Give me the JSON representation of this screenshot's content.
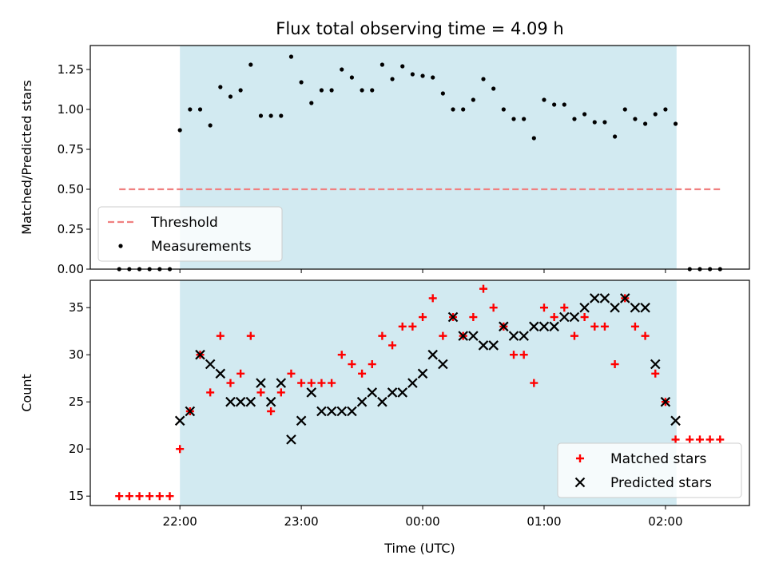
{
  "chart_data": [
    {
      "type": "scatter",
      "title": "Flux total observing time = 4.09 h",
      "ylabel": "Matched/Predicted stars",
      "xlabel": "",
      "x_ticks": [
        "22:00",
        "23:00",
        "00:00",
        "01:00",
        "02:00"
      ],
      "x_tick_values": [
        0,
        60,
        120,
        180,
        240
      ],
      "y_ticks": [
        "0.00",
        "0.25",
        "0.50",
        "0.75",
        "1.00",
        "1.25"
      ],
      "y_tick_values": [
        0,
        0.25,
        0.5,
        0.75,
        1.0,
        1.25
      ],
      "xlim": [
        -44.3,
        281.5
      ],
      "ylim": [
        0,
        1.4
      ],
      "shaded_region": [
        0,
        245.5
      ],
      "shade_color": "#add8e6",
      "legend_position": "lower-left",
      "series": [
        {
          "name": "Threshold",
          "style": "dashed-line",
          "color": "#f08080",
          "x": [
            -30,
            267
          ],
          "y": [
            0.5,
            0.5
          ]
        },
        {
          "name": "Measurements",
          "style": "dots",
          "color": "#000000",
          "x": [
            -30,
            -25,
            -20,
            -15,
            -10,
            -5,
            0,
            5,
            10,
            15,
            20,
            25,
            30,
            35,
            40,
            45,
            50,
            55,
            60,
            65,
            70,
            75,
            80,
            85,
            90,
            95,
            100,
            105,
            110,
            115,
            120,
            125,
            130,
            135,
            140,
            145,
            150,
            155,
            160,
            165,
            170,
            175,
            180,
            185,
            190,
            195,
            200,
            205,
            210,
            215,
            220,
            225,
            230,
            235,
            240,
            245,
            252,
            257,
            262,
            267
          ],
          "y": [
            0,
            0,
            0,
            0,
            0,
            0,
            0.87,
            1.0,
            1.0,
            0.9,
            1.14,
            1.08,
            1.12,
            1.28,
            0.96,
            0.96,
            0.96,
            1.33,
            1.17,
            1.04,
            1.12,
            1.12,
            1.25,
            1.2,
            1.12,
            1.12,
            1.28,
            1.19,
            1.27,
            1.22,
            1.21,
            1.2,
            1.1,
            1.0,
            1.0,
            1.06,
            1.19,
            1.13,
            1.0,
            0.94,
            0.94,
            0.82,
            1.06,
            1.03,
            1.03,
            0.94,
            0.97,
            0.92,
            0.92,
            0.83,
            1.0,
            0.94,
            0.91,
            0.97,
            1.0,
            0.91,
            0,
            0,
            0,
            0
          ]
        }
      ]
    },
    {
      "type": "scatter",
      "title": "",
      "ylabel": "Count",
      "xlabel": "Time (UTC)",
      "x_ticks": [
        "22:00",
        "23:00",
        "00:00",
        "01:00",
        "02:00"
      ],
      "x_tick_values": [
        0,
        60,
        120,
        180,
        240
      ],
      "y_ticks": [
        "15",
        "20",
        "25",
        "30",
        "35"
      ],
      "y_tick_values": [
        15,
        20,
        25,
        30,
        35
      ],
      "xlim": [
        -44.3,
        281.5
      ],
      "ylim": [
        14,
        37.9
      ],
      "shaded_region": [
        0,
        245.5
      ],
      "shade_color": "#add8e6",
      "legend_position": "lower-right",
      "series": [
        {
          "name": "Matched stars",
          "style": "plus",
          "color": "#ff0000",
          "x": [
            -30,
            -25,
            -20,
            -15,
            -10,
            -5,
            0,
            5,
            10,
            15,
            20,
            25,
            30,
            35,
            40,
            45,
            50,
            55,
            60,
            65,
            70,
            75,
            80,
            85,
            90,
            95,
            100,
            105,
            110,
            115,
            120,
            125,
            130,
            135,
            140,
            145,
            150,
            155,
            160,
            165,
            170,
            175,
            180,
            185,
            190,
            195,
            200,
            205,
            210,
            215,
            220,
            225,
            230,
            235,
            240,
            245,
            252,
            257,
            262,
            267
          ],
          "y": [
            15,
            15,
            15,
            15,
            15,
            15,
            20,
            24,
            30,
            26,
            32,
            27,
            28,
            32,
            26,
            24,
            26,
            28,
            27,
            27,
            27,
            27,
            30,
            29,
            28,
            29,
            32,
            31,
            33,
            33,
            34,
            36,
            32,
            34,
            32,
            34,
            37,
            35,
            33,
            30,
            30,
            27,
            35,
            34,
            35,
            32,
            34,
            33,
            33,
            29,
            36,
            33,
            32,
            28,
            25,
            21,
            21,
            21,
            21,
            21
          ]
        },
        {
          "name": "Predicted stars",
          "style": "x",
          "color": "#000000",
          "x": [
            0,
            5,
            10,
            15,
            20,
            25,
            30,
            35,
            40,
            45,
            50,
            55,
            60,
            65,
            70,
            75,
            80,
            85,
            90,
            95,
            100,
            105,
            110,
            115,
            120,
            125,
            130,
            135,
            140,
            145,
            150,
            155,
            160,
            165,
            170,
            175,
            180,
            185,
            190,
            195,
            200,
            205,
            210,
            215,
            220,
            225,
            230,
            235,
            240,
            245
          ],
          "y": [
            23,
            24,
            30,
            29,
            28,
            25,
            25,
            25,
            27,
            25,
            27,
            21,
            23,
            26,
            24,
            24,
            24,
            24,
            25,
            26,
            25,
            26,
            26,
            27,
            28,
            30,
            29,
            34,
            32,
            32,
            31,
            31,
            33,
            32,
            32,
            33,
            33,
            33,
            34,
            34,
            35,
            36,
            36,
            35,
            36,
            35,
            35,
            29,
            25,
            23
          ]
        }
      ]
    }
  ]
}
